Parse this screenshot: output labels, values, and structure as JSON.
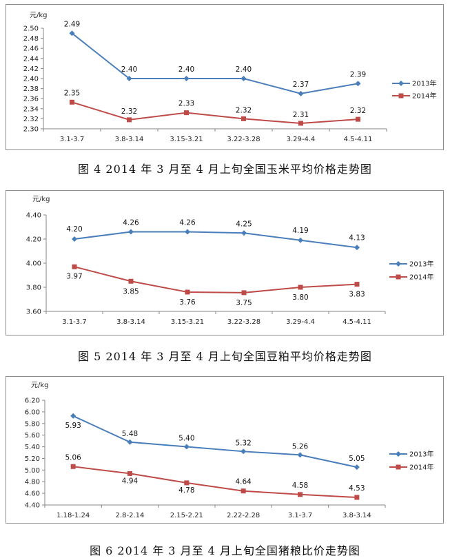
{
  "colors": {
    "series2013": "#4a7ebb",
    "series2014": "#be4b48",
    "axis": "#868686"
  },
  "chart_data": [
    {
      "type": "line",
      "caption": "图 4   2014 年 3 月至 4 月上旬全国玉米平均价格走势图",
      "unit": "元/kg",
      "categories": [
        "3.1-3.7",
        "3.8-3.14",
        "3.15-3.21",
        "3.22-3.28",
        "3.29-4.4",
        "4.5-4.11"
      ],
      "ylim": [
        2.3,
        2.5
      ],
      "yticks": [
        "2.50",
        "2.48",
        "2.46",
        "2.44",
        "2.42",
        "2.40",
        "2.38",
        "2.36",
        "2.34",
        "2.32",
        "2.30"
      ],
      "legend_position": "right",
      "series": [
        {
          "name": "2013年",
          "marker": "diamond",
          "values": [
            2.49,
            2.4,
            2.4,
            2.4,
            2.37,
            2.39
          ],
          "labels": [
            "2.49",
            "2.40",
            "2.40",
            "2.40",
            "2.37",
            "2.39"
          ]
        },
        {
          "name": "2014年",
          "marker": "square",
          "values": [
            2.353,
            2.318,
            2.332,
            2.32,
            2.311,
            2.319
          ],
          "labels": [
            "2.35",
            "2.32",
            "2.33",
            "2.32",
            "2.31",
            "2.32"
          ]
        }
      ]
    },
    {
      "type": "line",
      "caption": "图 5   2014 年 3 月至 4 月上旬全国豆粕平均价格走势图",
      "unit": "元/kg",
      "categories": [
        "3.1-3.7",
        "3.8-3.14",
        "3.15-3.21",
        "3.22-3.28",
        "3.29-4.4",
        "4.5-4.11"
      ],
      "ylim": [
        3.6,
        4.4
      ],
      "yticks": [
        "4.40",
        "4.20",
        "4.00",
        "3.80",
        "3.60"
      ],
      "legend_position": "right",
      "series": [
        {
          "name": "2013年",
          "marker": "diamond",
          "values": [
            4.2,
            4.26,
            4.26,
            4.25,
            4.19,
            4.13
          ],
          "labels": [
            "4.20",
            "4.26",
            "4.26",
            "4.25",
            "4.19",
            "4.13"
          ]
        },
        {
          "name": "2014年",
          "marker": "square",
          "values": [
            3.97,
            3.85,
            3.76,
            3.755,
            3.8,
            3.825
          ],
          "labels": [
            "3.97",
            "3.85",
            "3.76",
            "3.75",
            "3.80",
            "3.83"
          ]
        }
      ]
    },
    {
      "type": "line",
      "caption": "图 6   2014 年 3 月至 4 月上旬全国猪粮比价走势图",
      "unit": "元/kg",
      "categories": [
        "1.18-1.24",
        "2.8-2.14",
        "2.15-2.21",
        "2.22-2.28",
        "3.1-3.7",
        "3.8-3.14"
      ],
      "ylim": [
        4.4,
        6.2
      ],
      "yticks": [
        "6.20",
        "6.00",
        "5.80",
        "5.60",
        "5.40",
        "5.20",
        "5.00",
        "4.80",
        "4.60",
        "4.40"
      ],
      "legend_position": "right",
      "series": [
        {
          "name": "2013年",
          "marker": "diamond",
          "values": [
            5.93,
            5.48,
            5.4,
            5.32,
            5.26,
            5.05
          ],
          "labels": [
            "5.93",
            "5.48",
            "5.40",
            "5.32",
            "5.26",
            "5.05"
          ]
        },
        {
          "name": "2014年",
          "marker": "square",
          "values": [
            5.06,
            4.94,
            4.78,
            4.64,
            4.58,
            4.53
          ],
          "labels": [
            "5.06",
            "4.94",
            "4.78",
            "4.64",
            "4.58",
            "4.53"
          ]
        }
      ]
    }
  ]
}
